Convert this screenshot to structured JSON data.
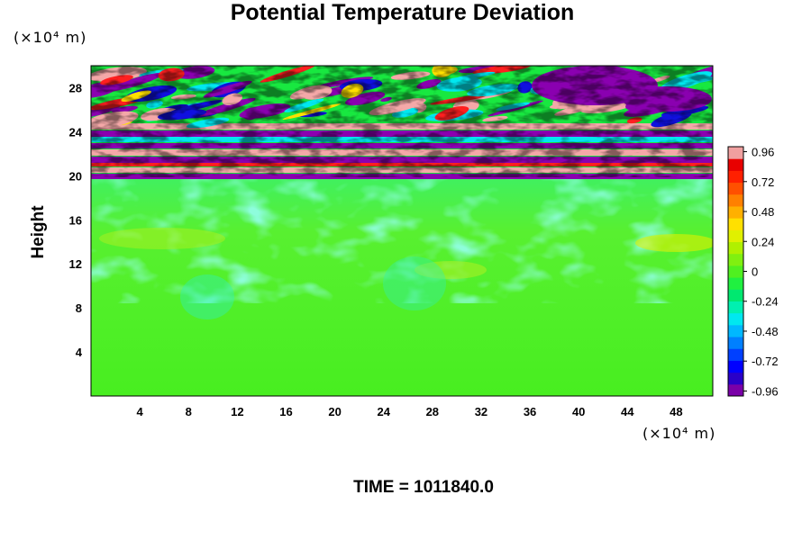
{
  "chart_data": {
    "type": "heatmap",
    "title": "Potential Temperature Deviation",
    "ylabel": "Height",
    "y_unit": "(×10⁴ m)",
    "x_unit": "(×10⁴ m)",
    "time_label": "TIME = 1011840.0",
    "xlim": [
      0,
      51
    ],
    "ylim": [
      0,
      30
    ],
    "x_ticks": [
      "4",
      "8",
      "12",
      "16",
      "20",
      "24",
      "28",
      "32",
      "36",
      "40",
      "44",
      "48"
    ],
    "y_ticks": [
      "4",
      "8",
      "12",
      "16",
      "20",
      "24",
      "28"
    ],
    "colorbar": {
      "range": [
        -1.0,
        1.0
      ],
      "ticks": [
        "0.96",
        "0.72",
        "0.48",
        "0.24",
        "0",
        "-0.24",
        "-0.48",
        "-0.72",
        "-0.96"
      ],
      "colors": [
        "#7a00a8",
        "#2a00c8",
        "#0000ff",
        "#0040ff",
        "#0080ff",
        "#00b8ff",
        "#00e8f0",
        "#00f0b0",
        "#00e870",
        "#20f040",
        "#50f020",
        "#80f010",
        "#b0f000",
        "#e0f000",
        "#ffe000",
        "#ffb000",
        "#ff8000",
        "#ff5000",
        "#ff2000",
        "#e80000",
        "#f0a0a0"
      ]
    }
  }
}
